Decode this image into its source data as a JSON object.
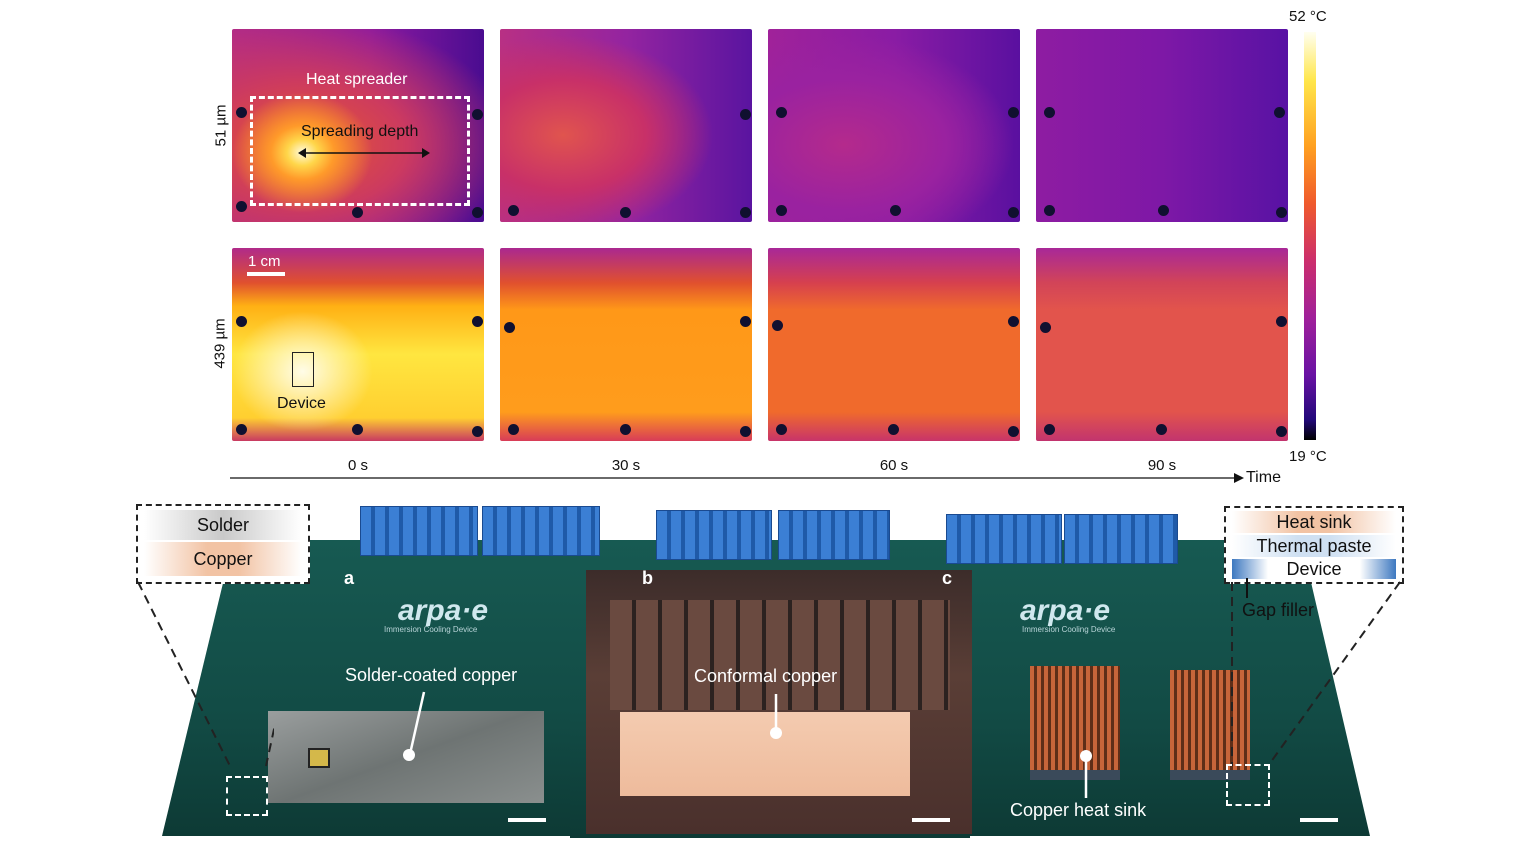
{
  "colorbar": {
    "max_label": "52 °C",
    "min_label": "19 °C"
  },
  "rows": [
    {
      "label": "51 µm"
    },
    {
      "label": "439 µm"
    }
  ],
  "thermal_annotations": {
    "heat_spreader": "Heat spreader",
    "spreading_depth": "Spreading depth",
    "scale_bar": "1 cm",
    "device": "Device"
  },
  "time_axis": {
    "ticks": [
      "0 s",
      "30 s",
      "60 s",
      "90 s"
    ],
    "label": "Time"
  },
  "photo": {
    "panels": [
      {
        "letter": "a",
        "caption": "Solder-coated copper"
      },
      {
        "letter": "b",
        "caption": "Conformal copper"
      },
      {
        "letter": "c",
        "caption": "Copper heat sink"
      }
    ],
    "board_logo": "arpa·e",
    "board_subtitle": "Immersion Cooling Device"
  },
  "inset_left": {
    "layers": [
      "Solder",
      "Copper"
    ]
  },
  "inset_right": {
    "layers": [
      "Heat sink",
      "Thermal paste",
      "Device"
    ],
    "callout": "Gap filler"
  },
  "colors": {
    "copper": "#f2c3a4",
    "solder": "#d4d4d4",
    "thermal_paste": "#cfe0f2",
    "device": "#3d78c0",
    "pcb": "#124b45"
  }
}
